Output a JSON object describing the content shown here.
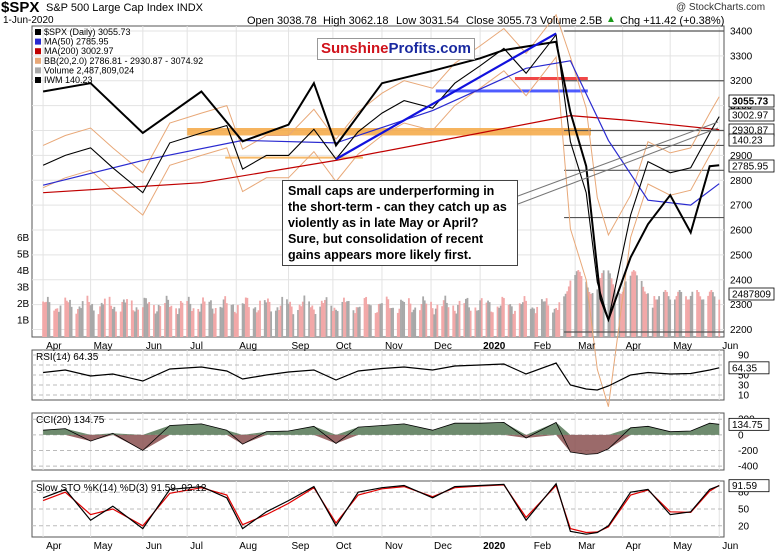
{
  "header": {
    "symbol": "$SPX",
    "name": "S&P 500 Large Cap Index",
    "exchange": "INDX",
    "date": "1-Jun-2020",
    "open": "Open 3038.78",
    "high": "High 3062.18",
    "low": "Low 3031.54",
    "close": "Close 3055.73",
    "volume": "Volume 2.5B",
    "chg": "Chg +11.42 (+0.38%)",
    "chg_arrow": "▲",
    "credit": "@ StockCharts.com"
  },
  "watermark": {
    "part1": "Sunshine",
    "part2": "Profits.com"
  },
  "annotation": "Small caps are underperforming in the short-term - can they catch up as violently as in late May or April? Sure, but consolidation of recent gains appears more likely first.",
  "colors": {
    "price": "#000000",
    "iwm": "#000000",
    "ma50": "#2a2ad0",
    "ma200": "#c00000",
    "bb": "#e8a878",
    "volume_up": "#f2a8a8",
    "volume_down": "#a8a8a8",
    "orange_zone": "#f4a742",
    "blue_line": "#1111dd",
    "stoch_k": "#000000",
    "stoch_d": "#e00000",
    "cci_pos": "#557755",
    "cci_neg": "#8a5050"
  },
  "chart_data": [
    {
      "type": "line",
      "panel": "price",
      "title": "$SPX (Daily) 3055.73",
      "legend": [
        {
          "label": "$SPX (Daily) 3055.73",
          "color": "#000000"
        },
        {
          "label": "MA(50) 2785.95",
          "color": "#2a2ad0"
        },
        {
          "label": "MA(200) 3002.97",
          "color": "#c00000"
        },
        {
          "label": "BB(20,2.0) 2786.81 - 2930.87 - 3074.92",
          "color": "#e8a878"
        },
        {
          "label": "Volume 2,487,809,024",
          "color": "#a8a8a8"
        },
        {
          "label": "IWM 140.23",
          "color": "#000000"
        }
      ],
      "y_ticks": [
        2200,
        2300,
        2400,
        2500,
        2600,
        2700,
        2800,
        2900,
        3000,
        3100,
        3200,
        3300,
        3400
      ],
      "ylim": [
        2170,
        3420
      ],
      "volume_ticks": [
        "1B",
        "2B",
        "3B",
        "4B",
        "5B",
        "6B"
      ],
      "right_labels": [
        "3055.73",
        "3002.97",
        "2930.87",
        "140.23",
        "2785.95",
        "2487809"
      ],
      "x_month_labels": [
        "Apr",
        "May",
        "Jun",
        "Jul",
        "Aug",
        "Sep",
        "Oct",
        "Nov",
        "Dec",
        "2020",
        "Feb",
        "Mar",
        "Apr",
        "May",
        "Jun"
      ],
      "spx": {
        "dates": [
          "2019-04-01",
          "2019-04-15",
          "2019-05-01",
          "2019-05-15",
          "2019-06-03",
          "2019-06-20",
          "2019-07-10",
          "2019-07-26",
          "2019-08-05",
          "2019-08-20",
          "2019-09-03",
          "2019-09-19",
          "2019-10-03",
          "2019-10-17",
          "2019-11-01",
          "2019-11-15",
          "2019-12-03",
          "2019-12-17",
          "2020-01-02",
          "2020-01-17",
          "2020-01-31",
          "2020-02-19",
          "2020-02-28",
          "2020-03-09",
          "2020-03-16",
          "2020-03-23",
          "2020-04-06",
          "2020-04-17",
          "2020-05-01",
          "2020-05-14",
          "2020-05-26",
          "2020-06-01"
        ],
        "values": [
          2860,
          2900,
          2930,
          2850,
          2750,
          2950,
          2990,
          3020,
          2845,
          2900,
          2900,
          3005,
          2885,
          2995,
          3070,
          3120,
          3090,
          3190,
          3260,
          3330,
          3230,
          3385,
          2955,
          2750,
          2390,
          2240,
          2660,
          2875,
          2830,
          2850,
          2990,
          3056
        ]
      },
      "iwm": {
        "dates": [
          "2019-04-01",
          "2019-05-01",
          "2019-06-03",
          "2019-07-10",
          "2019-08-05",
          "2019-09-03",
          "2019-09-19",
          "2019-10-03",
          "2019-11-01",
          "2019-12-03",
          "2020-01-02",
          "2020-01-17",
          "2020-02-19",
          "2020-02-28",
          "2020-03-09",
          "2020-03-18",
          "2020-03-23",
          "2020-04-06",
          "2020-04-17",
          "2020-05-01",
          "2020-05-14",
          "2020-05-26",
          "2020-06-01"
        ],
        "values": [
          158,
          160,
          148,
          158,
          146,
          150,
          160,
          145,
          160,
          163,
          166,
          168,
          170,
          153,
          140,
          108,
          103,
          118,
          126,
          133,
          124,
          140,
          140.23
        ]
      },
      "ma50": {
        "dates": [
          "2019-04-01",
          "2019-06-03",
          "2019-08-05",
          "2019-10-03",
          "2019-12-03",
          "2020-01-31",
          "2020-02-28",
          "2020-03-23",
          "2020-04-17",
          "2020-05-14",
          "2020-06-01"
        ],
        "values": [
          2780,
          2880,
          2960,
          2950,
          3080,
          3250,
          3280,
          2960,
          2720,
          2700,
          2786
        ]
      },
      "ma200": {
        "dates": [
          "2019-04-01",
          "2019-07-10",
          "2019-10-03",
          "2020-01-02",
          "2020-02-28",
          "2020-04-06",
          "2020-06-01"
        ],
        "values": [
          2750,
          2790,
          2880,
          2990,
          3060,
          3040,
          3003
        ]
      },
      "levels": [
        3400,
        3200,
        3000,
        2940,
        2840,
        2650,
        2190
      ],
      "trend_line": {
        "from": [
          "2019-10-03",
          2885
        ],
        "to": [
          "2020-02-19",
          3390
        ]
      }
    },
    {
      "type": "line",
      "panel": "rsi",
      "title": "RSI(14) 64.35",
      "y_ticks": [
        10,
        30,
        50,
        70,
        90
      ],
      "ylim": [
        0,
        100
      ],
      "last": "64.35",
      "values": [
        55,
        60,
        48,
        52,
        38,
        62,
        66,
        58,
        42,
        50,
        56,
        60,
        40,
        58,
        63,
        66,
        60,
        68,
        70,
        72,
        52,
        74,
        30,
        22,
        20,
        28,
        50,
        55,
        52,
        53,
        60,
        64.35
      ]
    },
    {
      "type": "area",
      "panel": "cci",
      "title": "CCI(20) 134.75",
      "y_ticks": [
        -400,
        -200,
        0,
        200
      ],
      "ylim": [
        -450,
        280
      ],
      "last": "134.75",
      "values": [
        60,
        80,
        -80,
        20,
        -200,
        120,
        140,
        60,
        -120,
        40,
        50,
        110,
        -110,
        100,
        120,
        140,
        60,
        150,
        150,
        160,
        -40,
        160,
        -220,
        -250,
        -240,
        -180,
        90,
        110,
        40,
        50,
        150,
        134.75
      ]
    },
    {
      "type": "line",
      "panel": "stochastics",
      "title": "Slow STO %K(14) %D(3) 91.59, 92.12",
      "y_ticks": [
        20,
        50,
        80
      ],
      "ylim": [
        0,
        100
      ],
      "last": "91.59",
      "k": [
        70,
        85,
        30,
        55,
        15,
        85,
        90,
        70,
        15,
        45,
        65,
        90,
        20,
        80,
        88,
        92,
        70,
        90,
        92,
        94,
        30,
        95,
        10,
        5,
        8,
        20,
        80,
        85,
        40,
        45,
        85,
        91.59
      ],
      "d": [
        65,
        80,
        40,
        50,
        20,
        78,
        88,
        75,
        22,
        40,
        60,
        88,
        25,
        75,
        86,
        90,
        72,
        88,
        91,
        93,
        35,
        92,
        15,
        8,
        9,
        18,
        75,
        84,
        45,
        44,
        82,
        92.12
      ]
    }
  ]
}
